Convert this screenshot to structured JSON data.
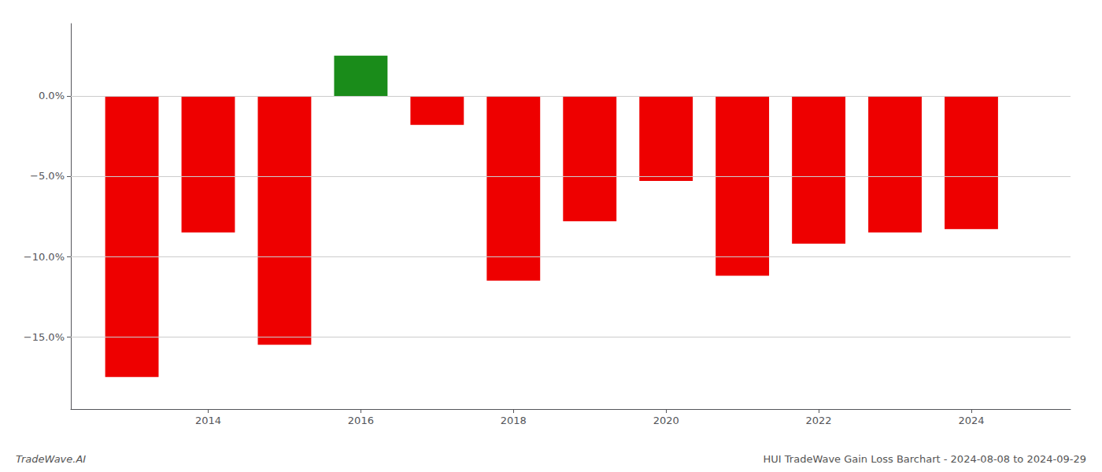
{
  "chart_data": {
    "type": "bar",
    "x": [
      2013,
      2014,
      2015,
      2016,
      2017,
      2018,
      2019,
      2020,
      2021,
      2022,
      2023,
      2024
    ],
    "values": [
      -17.5,
      -8.5,
      -15.5,
      2.5,
      -1.8,
      -11.5,
      -7.8,
      -5.3,
      -11.2,
      -9.2,
      -8.5,
      -8.3
    ],
    "colors": [
      "#ee0000",
      "#ee0000",
      "#ee0000",
      "#1a8c1a",
      "#ee0000",
      "#ee0000",
      "#ee0000",
      "#ee0000",
      "#ee0000",
      "#ee0000",
      "#ee0000",
      "#ee0000"
    ],
    "xlim": [
      2012.2,
      2025.3
    ],
    "xticks": [
      2014,
      2016,
      2018,
      2020,
      2022,
      2024
    ],
    "ylim": [
      -19.5,
      4.5
    ],
    "yticks": [
      {
        "value": 0.0,
        "label": "0.0%"
      },
      {
        "value": -5.0,
        "label": "−5.0%"
      },
      {
        "value": -10.0,
        "label": "−10.0%"
      },
      {
        "value": -15.0,
        "label": "−15.0%"
      }
    ],
    "grid": true,
    "annotations": [
      "TradeWave.AI",
      "HUI TradeWave Gain Loss Barchart - 2024-08-08 to 2024-09-29"
    ]
  }
}
